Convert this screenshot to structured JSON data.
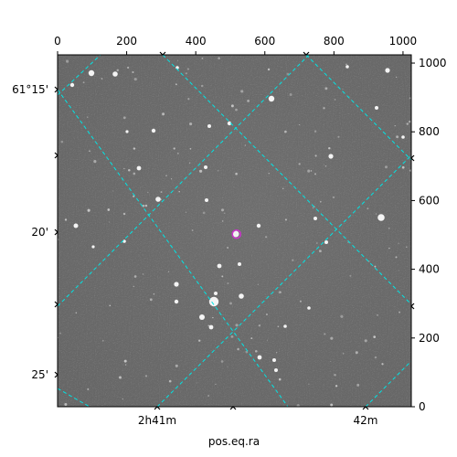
{
  "chart_data": {
    "type": "image",
    "title": "",
    "xlabel": "pos.eq.ra",
    "ylabel": "",
    "pixel_axes": {
      "top_ticks": [
        "0",
        "200",
        "400",
        "600",
        "800",
        "1000"
      ],
      "top_tick_values": [
        0,
        200,
        400,
        600,
        800,
        1000
      ],
      "right_ticks": [
        "0",
        "200",
        "400",
        "600",
        "800",
        "1000"
      ],
      "right_tick_values": [
        0,
        200,
        400,
        600,
        800,
        1000
      ],
      "x_range": [
        0,
        1024
      ],
      "y_range": [
        0,
        1024
      ]
    },
    "world_axes": {
      "ra_ticks": [
        "2h41m",
        "42m"
      ],
      "dec_ticks": [
        "61°15'",
        "20'",
        "25'"
      ]
    },
    "grid": true,
    "grid_color": "#00e5e5",
    "marker": {
      "type": "circle",
      "color": "#cc33cc",
      "x": 518,
      "y": 502
    },
    "image_background": "#6e6e6e"
  }
}
